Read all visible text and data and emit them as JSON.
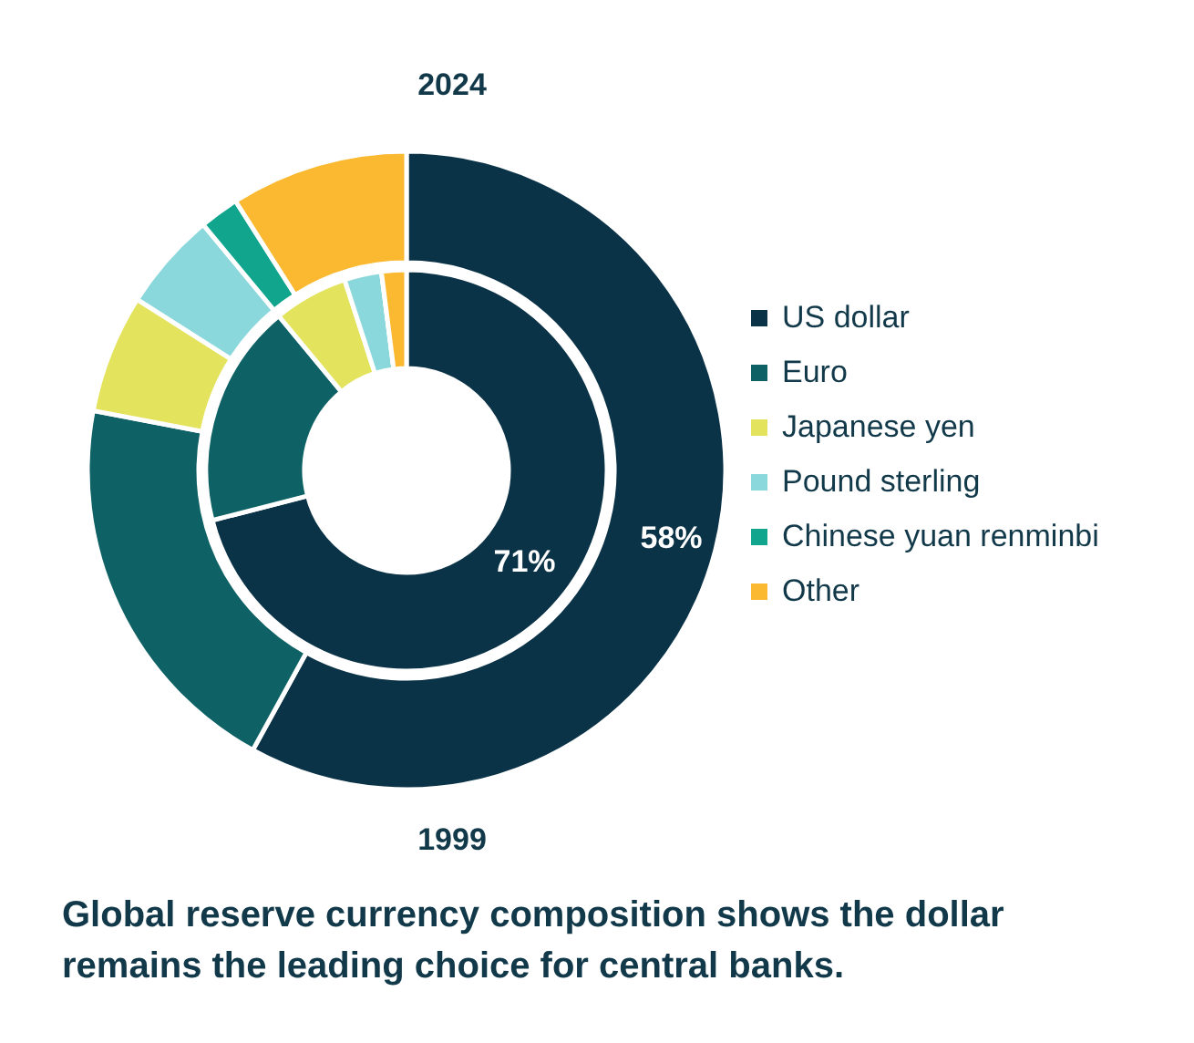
{
  "chart_data": {
    "type": "donut",
    "title": "Global reserve currency composition shows the dollar remains the leading choice for central banks.",
    "categories": [
      "US dollar",
      "Euro",
      "Japanese yen",
      "Pound sterling",
      "Chinese yuan renminbi",
      "Other"
    ],
    "colors": [
      "#0b3347",
      "#0e6164",
      "#e3e35e",
      "#8ad8dc",
      "#12a58e",
      "#fbb931"
    ],
    "series": [
      {
        "name": "2024",
        "values": [
          58,
          20,
          6,
          5,
          2,
          9
        ],
        "value_labels": [
          "58%",
          null,
          null,
          null,
          null,
          null
        ]
      },
      {
        "name": "1999",
        "values": [
          71,
          18,
          6,
          3,
          0,
          2
        ],
        "value_labels": [
          "71%",
          null,
          null,
          null,
          null,
          null
        ]
      }
    ],
    "legend": "right"
  }
}
